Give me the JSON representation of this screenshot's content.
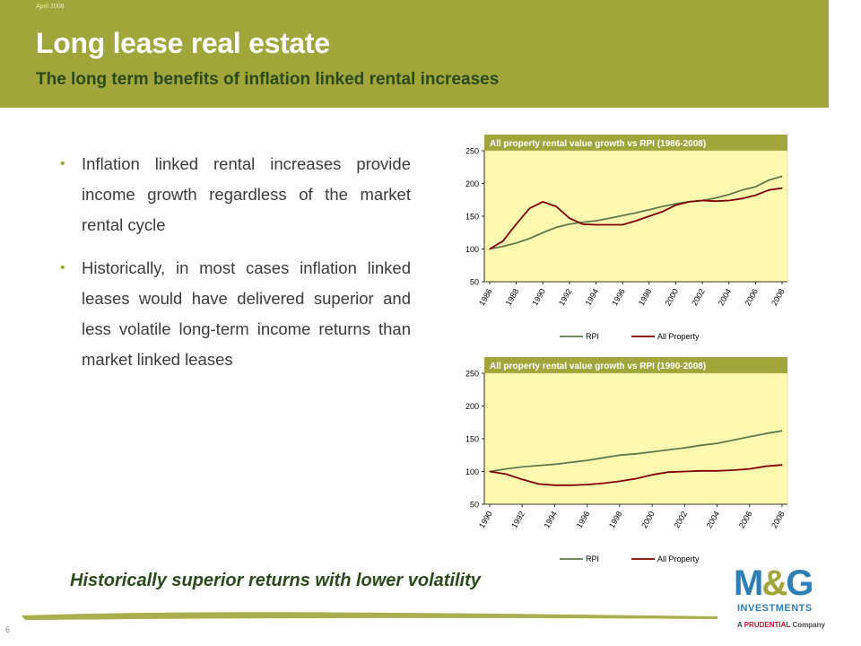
{
  "header": {
    "date": "April 2008",
    "title": "Long lease real estate",
    "subtitle": "The long term benefits of inflation linked rental increases"
  },
  "bullets": [
    "Inflation linked rental increases provide income growth regardless of the market rental cycle",
    "Historically, in most cases inflation linked leases would have delivered superior and less volatile long-term income returns than market linked leases"
  ],
  "tagline": "Historically superior returns with lower volatility",
  "page_number": "6",
  "logo": {
    "brand_left": "M",
    "brand_amp": "&",
    "brand_right": "G",
    "line2": "INVESTMENTS",
    "pre": "A ",
    "pru": "PRUDENTIAL",
    "post": " Company"
  },
  "colors": {
    "header": "#a0a63a",
    "plot_bg": "#fff8b0",
    "rpi": "#5e7a4a",
    "all_property": "#800000",
    "title_box": "#a0a63a"
  },
  "chart_data": [
    {
      "type": "line",
      "title": "All property rental value growth vs RPI (1986-2008)",
      "ylim": [
        50,
        250
      ],
      "yticks": [
        50,
        100,
        150,
        200,
        250
      ],
      "xlim": [
        1986,
        2008
      ],
      "xticks": [
        "1986",
        "1988",
        "1990",
        "1992",
        "1994",
        "1996",
        "1998",
        "2000",
        "2002",
        "2004",
        "2006",
        "2008"
      ],
      "legend_position": "bottom",
      "series": [
        {
          "name": "RPI",
          "color": "#5e7a4a",
          "x": [
            1986,
            1987,
            1988,
            1989,
            1990,
            1991,
            1992,
            1993,
            1994,
            1995,
            1996,
            1997,
            1998,
            1999,
            2000,
            2001,
            2002,
            2003,
            2004,
            2005,
            2006,
            2007,
            2008
          ],
          "y": [
            100,
            104,
            109,
            116,
            125,
            133,
            138,
            141,
            143,
            147,
            151,
            155,
            160,
            165,
            169,
            172,
            174,
            178,
            183,
            190,
            195,
            205,
            211
          ]
        },
        {
          "name": "All Property",
          "color": "#800000",
          "x": [
            1986,
            1987,
            1988,
            1989,
            1990,
            1991,
            1992,
            1993,
            1994,
            1995,
            1996,
            1997,
            1998,
            1999,
            2000,
            2001,
            2002,
            2003,
            2004,
            2005,
            2006,
            2007,
            2008
          ],
          "y": [
            100,
            112,
            138,
            162,
            172,
            165,
            147,
            138,
            137,
            137,
            137,
            143,
            150,
            157,
            167,
            172,
            174,
            173,
            174,
            177,
            182,
            190,
            193
          ]
        }
      ]
    },
    {
      "type": "line",
      "title": "All property rental value growth vs RPI (1990-2008)",
      "ylim": [
        50,
        250
      ],
      "yticks": [
        50,
        100,
        150,
        200,
        250
      ],
      "xlim": [
        1990,
        2008
      ],
      "xticks": [
        "1990",
        "1992",
        "1994",
        "1996",
        "1998",
        "2000",
        "2002",
        "2004",
        "2006",
        "2008"
      ],
      "legend_position": "bottom",
      "series": [
        {
          "name": "RPI",
          "color": "#5e7a4a",
          "x": [
            1990,
            1991,
            1992,
            1993,
            1994,
            1995,
            1996,
            1997,
            1998,
            1999,
            2000,
            2001,
            2002,
            2003,
            2004,
            2005,
            2006,
            2007,
            2008
          ],
          "y": [
            100,
            104,
            107,
            109,
            111,
            114,
            117,
            121,
            125,
            127,
            130,
            133,
            136,
            140,
            143,
            148,
            153,
            158,
            162
          ]
        },
        {
          "name": "All Property",
          "color": "#800000",
          "x": [
            1990,
            1991,
            1992,
            1993,
            1994,
            1995,
            1996,
            1997,
            1998,
            1999,
            2000,
            2001,
            2002,
            2003,
            2004,
            2005,
            2006,
            2007,
            2008
          ],
          "y": [
            100,
            96,
            88,
            81,
            79,
            79,
            80,
            82,
            85,
            89,
            95,
            99,
            100,
            101,
            101,
            102,
            104,
            108,
            110
          ]
        }
      ]
    }
  ]
}
